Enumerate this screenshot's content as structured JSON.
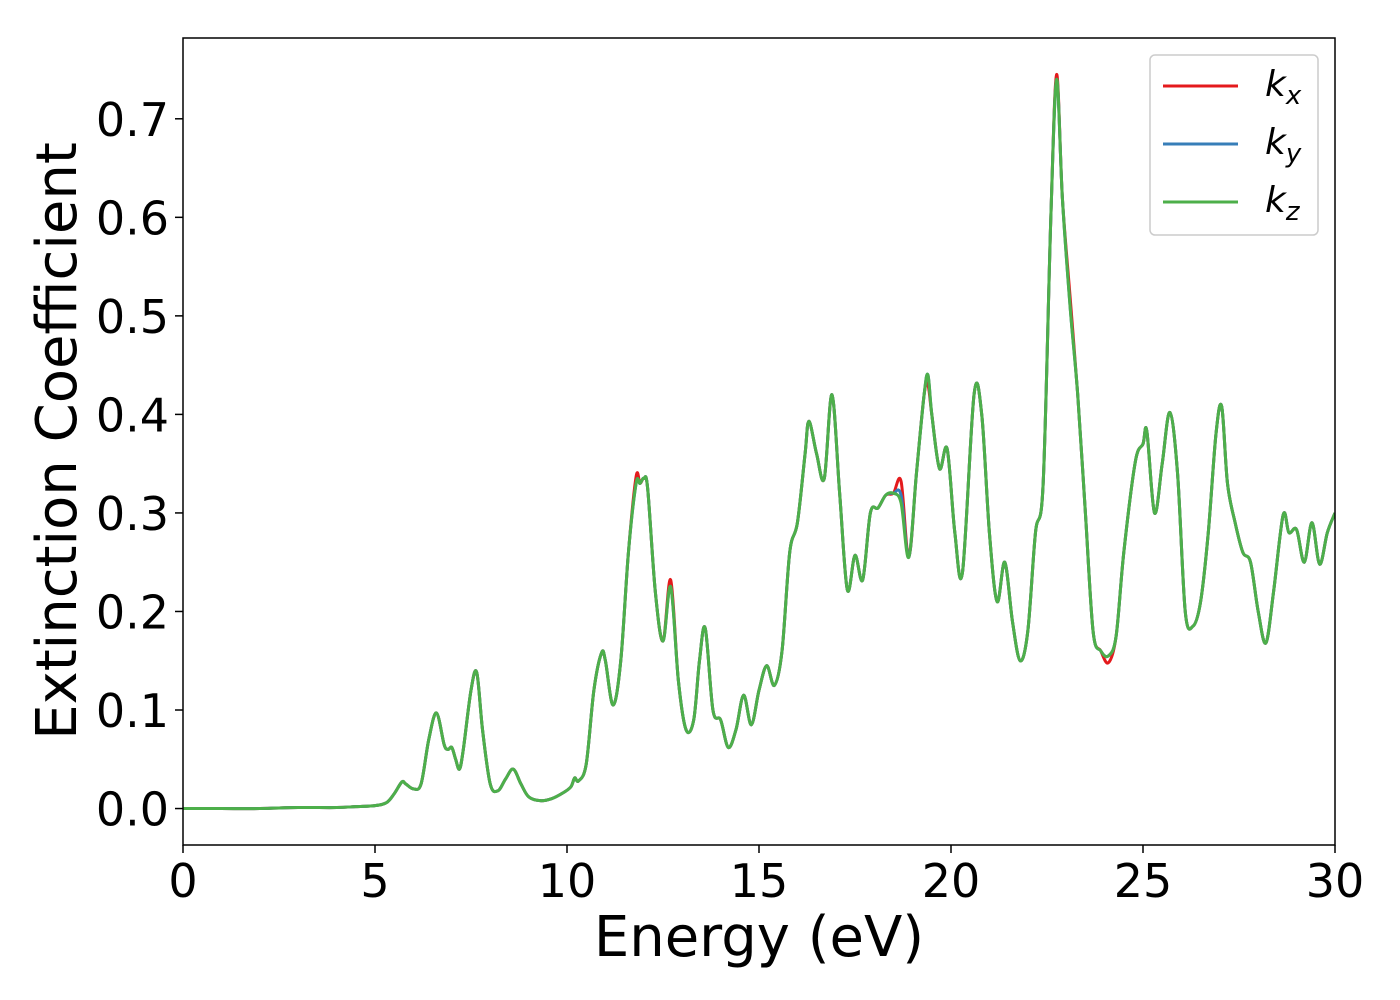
{
  "chart_data": {
    "type": "line",
    "xlabel": "Energy (eV)",
    "ylabel": "Extinction Coefficient",
    "x": [
      0,
      1,
      2,
      3,
      4,
      4.5,
      5,
      5.3,
      5.5,
      5.7,
      5.8,
      6.0,
      6.2,
      6.4,
      6.6,
      6.8,
      6.9,
      7.0,
      7.1,
      7.2,
      7.3,
      7.5,
      7.65,
      7.8,
      8.0,
      8.2,
      8.4,
      8.6,
      8.8,
      9.0,
      9.3,
      9.6,
      9.9,
      10.1,
      10.2,
      10.3,
      10.5,
      10.7,
      10.9,
      11.0,
      11.2,
      11.4,
      11.6,
      11.8,
      11.9,
      12.0,
      12.1,
      12.3,
      12.5,
      12.7,
      12.9,
      13.1,
      13.3,
      13.45,
      13.6,
      13.8,
      14.0,
      14.2,
      14.4,
      14.6,
      14.8,
      15.0,
      15.2,
      15.4,
      15.6,
      15.8,
      16.0,
      16.2,
      16.3,
      16.5,
      16.7,
      16.9,
      17.1,
      17.3,
      17.5,
      17.7,
      17.9,
      18.1,
      18.3,
      18.5,
      18.7,
      18.9,
      19.1,
      19.3,
      19.4,
      19.5,
      19.7,
      19.9,
      20.1,
      20.3,
      20.6,
      20.8,
      21.0,
      21.2,
      21.4,
      21.6,
      21.8,
      22.0,
      22.2,
      22.4,
      22.6,
      22.75,
      22.9,
      23.1,
      23.3,
      23.5,
      23.7,
      23.9,
      24.1,
      24.3,
      24.5,
      24.8,
      25.0,
      25.1,
      25.3,
      25.5,
      25.7,
      25.9,
      26.1,
      26.3,
      26.5,
      26.7,
      26.9,
      27.05,
      27.2,
      27.4,
      27.6,
      27.8,
      28.0,
      28.2,
      28.4,
      28.65,
      28.8,
      29.0,
      29.2,
      29.4,
      29.6,
      29.8,
      30.0
    ],
    "series": [
      {
        "name": "kx",
        "color": "#e41a1c",
        "values": [
          0,
          0,
          0,
          0.001,
          0.001,
          0.002,
          0.003,
          0.006,
          0.015,
          0.027,
          0.025,
          0.02,
          0.025,
          0.07,
          0.097,
          0.065,
          0.06,
          0.062,
          0.05,
          0.04,
          0.06,
          0.12,
          0.138,
          0.08,
          0.025,
          0.018,
          0.03,
          0.04,
          0.025,
          0.012,
          0.008,
          0.01,
          0.016,
          0.022,
          0.031,
          0.028,
          0.045,
          0.12,
          0.158,
          0.15,
          0.105,
          0.15,
          0.26,
          0.337,
          0.33,
          0.335,
          0.325,
          0.22,
          0.17,
          0.232,
          0.13,
          0.08,
          0.09,
          0.15,
          0.183,
          0.1,
          0.09,
          0.062,
          0.08,
          0.115,
          0.085,
          0.12,
          0.145,
          0.125,
          0.16,
          0.26,
          0.29,
          0.36,
          0.393,
          0.36,
          0.335,
          0.42,
          0.32,
          0.222,
          0.257,
          0.232,
          0.3,
          0.305,
          0.318,
          0.32,
          0.332,
          0.255,
          0.34,
          0.42,
          0.43,
          0.4,
          0.345,
          0.365,
          0.28,
          0.24,
          0.42,
          0.4,
          0.28,
          0.21,
          0.25,
          0.19,
          0.15,
          0.18,
          0.28,
          0.33,
          0.6,
          0.745,
          0.62,
          0.52,
          0.42,
          0.3,
          0.18,
          0.16,
          0.148,
          0.175,
          0.26,
          0.352,
          0.37,
          0.383,
          0.3,
          0.35,
          0.402,
          0.34,
          0.2,
          0.185,
          0.21,
          0.28,
          0.38,
          0.408,
          0.33,
          0.29,
          0.26,
          0.25,
          0.2,
          0.168,
          0.22,
          0.298,
          0.28,
          0.283,
          0.25,
          0.29,
          0.248,
          0.28,
          0.3
        ]
      },
      {
        "name": "ky",
        "color": "#377eb8",
        "values": [
          0,
          0,
          0,
          0.001,
          0.001,
          0.002,
          0.003,
          0.006,
          0.015,
          0.027,
          0.025,
          0.02,
          0.025,
          0.07,
          0.097,
          0.065,
          0.06,
          0.062,
          0.05,
          0.04,
          0.06,
          0.12,
          0.138,
          0.08,
          0.025,
          0.018,
          0.03,
          0.04,
          0.025,
          0.012,
          0.008,
          0.01,
          0.016,
          0.022,
          0.031,
          0.028,
          0.045,
          0.12,
          0.158,
          0.15,
          0.105,
          0.15,
          0.26,
          0.33,
          0.33,
          0.335,
          0.325,
          0.22,
          0.17,
          0.225,
          0.13,
          0.08,
          0.09,
          0.15,
          0.183,
          0.1,
          0.09,
          0.062,
          0.08,
          0.115,
          0.085,
          0.12,
          0.145,
          0.125,
          0.16,
          0.26,
          0.29,
          0.36,
          0.393,
          0.36,
          0.335,
          0.42,
          0.32,
          0.222,
          0.257,
          0.232,
          0.3,
          0.305,
          0.318,
          0.32,
          0.318,
          0.255,
          0.34,
          0.42,
          0.44,
          0.4,
          0.345,
          0.365,
          0.28,
          0.24,
          0.42,
          0.4,
          0.28,
          0.21,
          0.25,
          0.19,
          0.15,
          0.18,
          0.28,
          0.33,
          0.6,
          0.74,
          0.62,
          0.51,
          0.42,
          0.3,
          0.18,
          0.16,
          0.155,
          0.175,
          0.26,
          0.352,
          0.37,
          0.383,
          0.3,
          0.35,
          0.402,
          0.34,
          0.2,
          0.185,
          0.21,
          0.28,
          0.38,
          0.408,
          0.33,
          0.29,
          0.26,
          0.25,
          0.2,
          0.168,
          0.22,
          0.298,
          0.28,
          0.283,
          0.25,
          0.29,
          0.248,
          0.28,
          0.3
        ]
      },
      {
        "name": "kz",
        "color": "#4daf4a",
        "values": [
          0,
          0,
          0,
          0.001,
          0.001,
          0.002,
          0.003,
          0.006,
          0.015,
          0.027,
          0.025,
          0.02,
          0.025,
          0.07,
          0.097,
          0.065,
          0.06,
          0.062,
          0.05,
          0.04,
          0.06,
          0.12,
          0.138,
          0.08,
          0.025,
          0.018,
          0.03,
          0.04,
          0.025,
          0.012,
          0.008,
          0.01,
          0.016,
          0.022,
          0.031,
          0.028,
          0.045,
          0.12,
          0.158,
          0.15,
          0.105,
          0.15,
          0.26,
          0.33,
          0.33,
          0.335,
          0.325,
          0.22,
          0.17,
          0.225,
          0.13,
          0.08,
          0.09,
          0.15,
          0.183,
          0.1,
          0.09,
          0.062,
          0.08,
          0.115,
          0.085,
          0.12,
          0.145,
          0.125,
          0.16,
          0.26,
          0.29,
          0.36,
          0.393,
          0.36,
          0.335,
          0.42,
          0.32,
          0.222,
          0.257,
          0.232,
          0.3,
          0.305,
          0.318,
          0.32,
          0.31,
          0.255,
          0.34,
          0.42,
          0.44,
          0.4,
          0.345,
          0.365,
          0.28,
          0.24,
          0.42,
          0.4,
          0.28,
          0.21,
          0.25,
          0.19,
          0.15,
          0.18,
          0.28,
          0.33,
          0.6,
          0.74,
          0.62,
          0.51,
          0.42,
          0.3,
          0.18,
          0.16,
          0.155,
          0.175,
          0.26,
          0.352,
          0.37,
          0.383,
          0.3,
          0.35,
          0.402,
          0.34,
          0.2,
          0.185,
          0.21,
          0.28,
          0.38,
          0.408,
          0.33,
          0.29,
          0.26,
          0.25,
          0.2,
          0.168,
          0.22,
          0.298,
          0.28,
          0.283,
          0.25,
          0.29,
          0.248,
          0.28,
          0.3
        ]
      }
    ],
    "xlim": [
      0,
      30
    ],
    "xticks": [
      0,
      5,
      10,
      15,
      20,
      25,
      30
    ],
    "ylim": [
      -0.037,
      0.782
    ],
    "yticks": [
      {
        "value": 0,
        "label": "0.0"
      },
      0.1,
      0.2,
      0.3,
      0.4,
      0.5,
      0.6,
      0.7
    ],
    "grid": false,
    "legend": "upper right"
  }
}
